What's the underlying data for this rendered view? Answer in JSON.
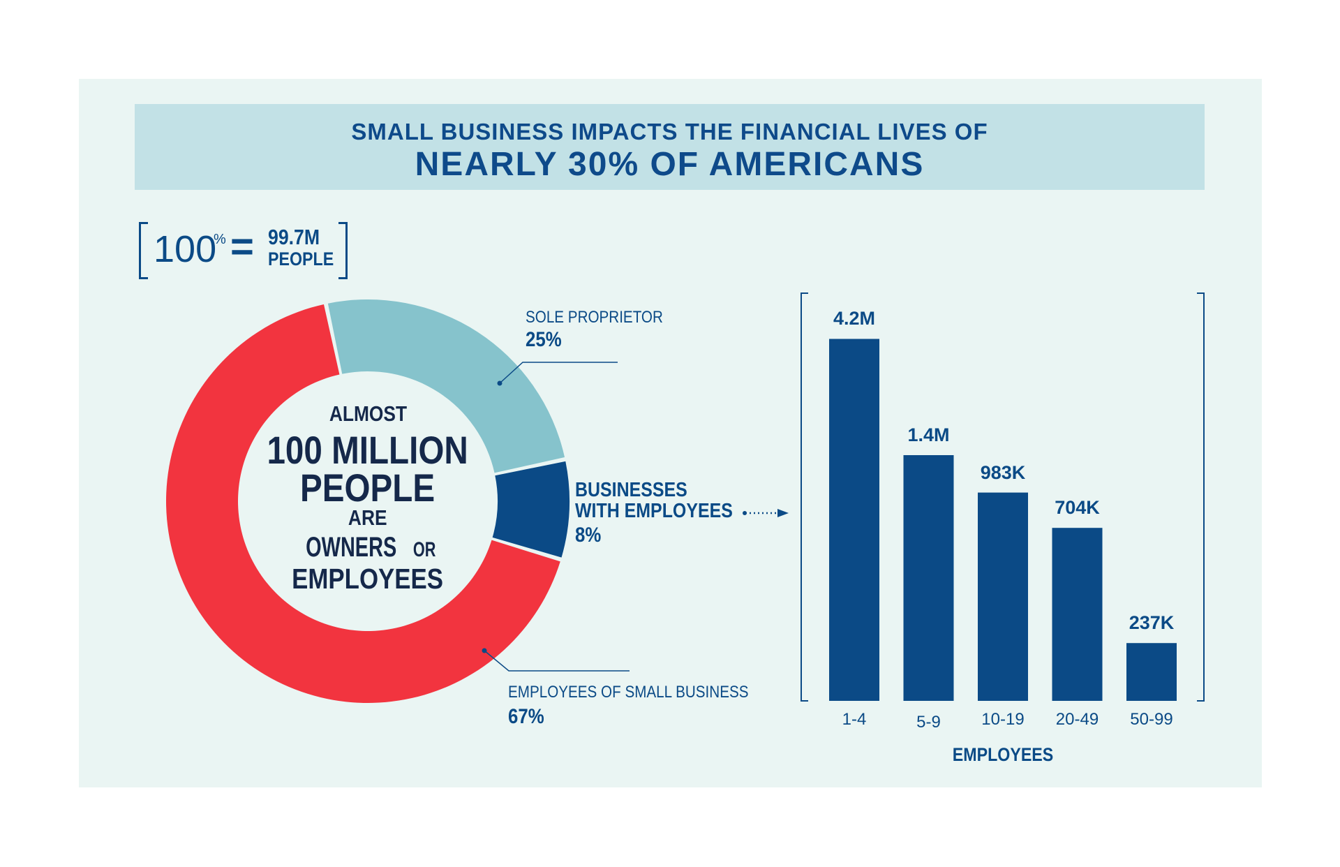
{
  "header": {
    "line1": "SMALL BUSINESS IMPACTS THE FINANCIAL LIVES OF",
    "line2": "NEARLY 30% OF AMERICANS"
  },
  "legend_box": {
    "percent": "100",
    "percent_sign": "%",
    "equals": "=",
    "value": "99.7M",
    "unit": "PEOPLE"
  },
  "center_text": {
    "line1": "ALMOST",
    "line2": "100 MILLION",
    "line3": "PEOPLE",
    "line4": "ARE",
    "line5a": "OWNERS",
    "line5b": "OR",
    "line6": "EMPLOYEES"
  },
  "colors": {
    "navy": "#0b4a86",
    "light_blue": "#86c3cc",
    "red": "#f2343f",
    "panel": "#eaf5f3",
    "banner": "#c2e1e6"
  },
  "chart_data": [
    {
      "type": "pie",
      "donut": true,
      "slices": [
        {
          "label": "SOLE PROPRIETOR",
          "value": 25,
          "display": "25%",
          "color": "#86c3cc"
        },
        {
          "label_lines": [
            "BUSINESSES",
            "WITH EMPLOYEES"
          ],
          "label": "BUSINESSES WITH EMPLOYEES",
          "value": 8,
          "display": "8%",
          "color": "#0b4a86"
        },
        {
          "label": "EMPLOYEES OF SMALL BUSINESS",
          "value": 67,
          "display": "67%",
          "color": "#f2343f"
        }
      ]
    },
    {
      "type": "bar",
      "categories": [
        "1-4",
        "5-9",
        "10-19",
        "20-49",
        "50-99"
      ],
      "values": [
        4200000,
        1400000,
        983000,
        704000,
        237000
      ],
      "data_labels": [
        "4.2M",
        "1.4M",
        "983K",
        "704K",
        "237K"
      ],
      "xlabel": "EMPLOYEES",
      "ylabel": "",
      "color": "#0b4a86"
    }
  ]
}
